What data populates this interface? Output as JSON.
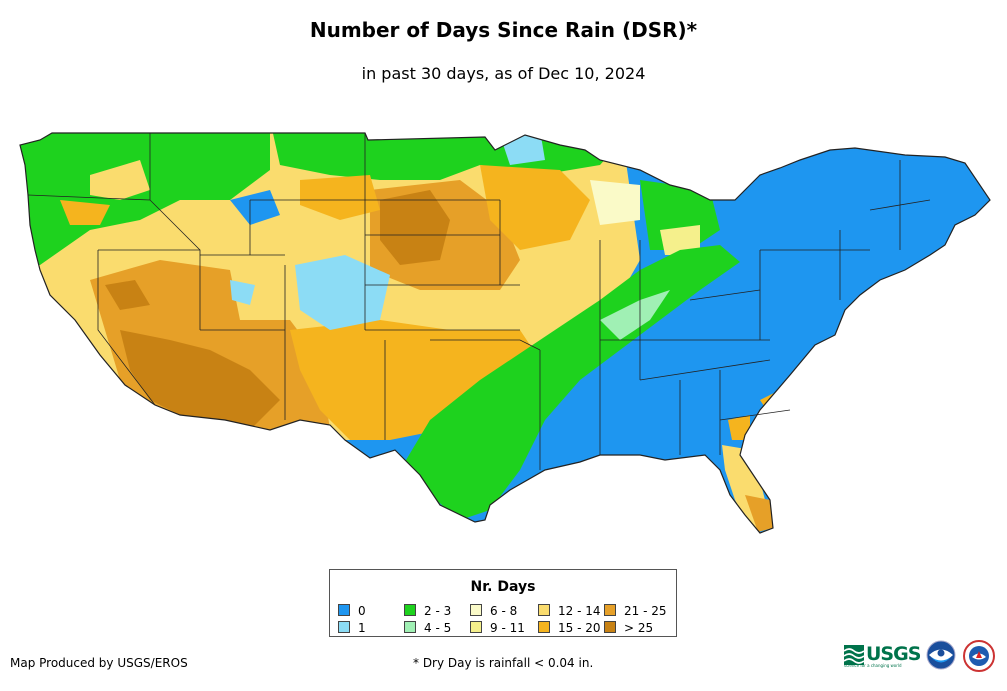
{
  "title": "Number of Days Since Rain (DSR)*",
  "subtitle": "in past 30 days, as of Dec 10, 2024",
  "legend": {
    "title": "Nr. Days",
    "items": [
      {
        "label": "0",
        "color": "#1e96f0"
      },
      {
        "label": "1",
        "color": "#8cdcf5"
      },
      {
        "label": "2 - 3",
        "color": "#1ed21e"
      },
      {
        "label": "4 - 5",
        "color": "#a0f0b4"
      },
      {
        "label": "6 - 8",
        "color": "#fafac8"
      },
      {
        "label": "9 - 11",
        "color": "#f5f08c"
      },
      {
        "label": "12 - 14",
        "color": "#fadc6e"
      },
      {
        "label": "15 - 20",
        "color": "#f5b41e"
      },
      {
        "label": "21 - 25",
        "color": "#e6a028"
      },
      {
        "label": "> 25",
        "color": "#c88214"
      }
    ]
  },
  "footer": {
    "producer": "Map Produced by USGS/EROS",
    "note": "* Dry Day is rainfall < 0.04 in."
  },
  "logos": {
    "usgs": "USGS",
    "usgs_tagline": "science for a changing world"
  }
}
